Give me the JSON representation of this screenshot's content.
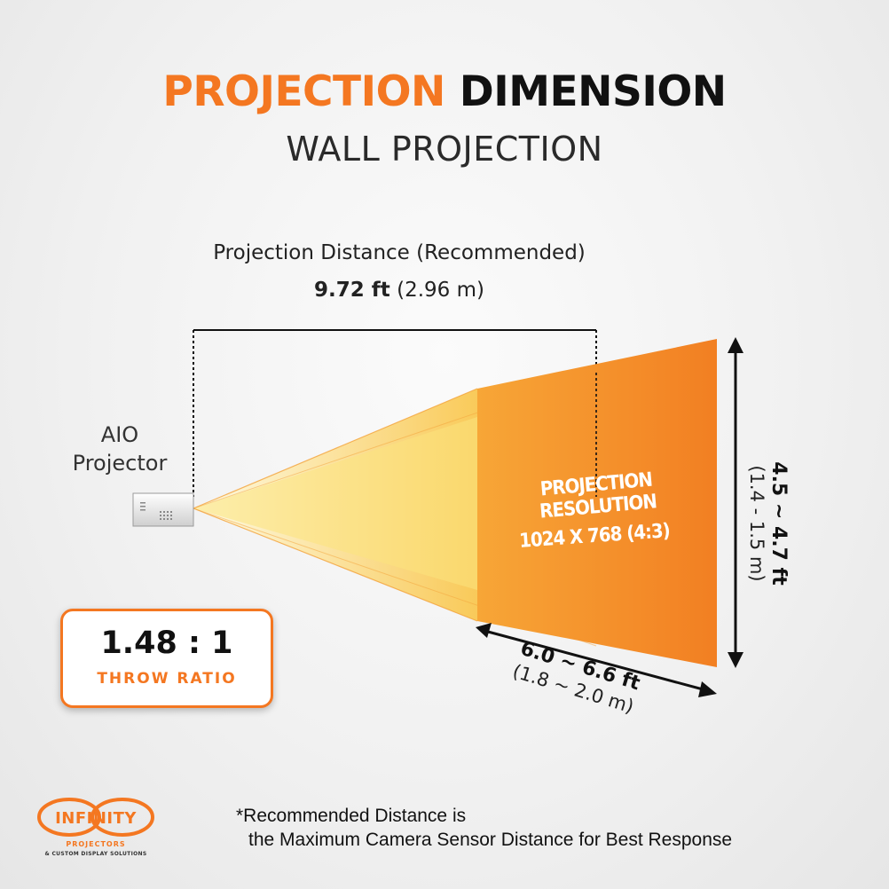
{
  "header": {
    "title_accent": "PROJECTION",
    "title_dark": "DIMENSION",
    "subtitle": "WALL PROJECTION"
  },
  "distance": {
    "label": "Projection Distance (Recommended)",
    "value_ft": "9.72 ft",
    "value_m": "(2.96 m)"
  },
  "projector": {
    "label_line1": "AIO",
    "label_line2": "Projector"
  },
  "screen": {
    "title": "PROJECTION RESOLUTION",
    "resolution": "1024 X 768 (4:3)"
  },
  "height": {
    "ft": "4.5 ~ 4.7 ft",
    "m": "(1.4 - 1.5 m)"
  },
  "width": {
    "ft": "6.0 ~ 6.6 ft",
    "m": "(1.8 ~ 2.0 m)"
  },
  "throw": {
    "value": "1.48 : 1",
    "label": "THROW RATIO"
  },
  "footnote": {
    "line1": "*Recommended Distance is",
    "line2": "the Maximum Camera Sensor Distance for Best Response"
  },
  "logo": {
    "name": "INFINITY",
    "sub1": "PROJECTORS",
    "sub2": "& CUSTOM DISPLAY SOLUTIONS"
  },
  "colors": {
    "accent": "#f47721",
    "beam": "#fbe36a",
    "screen": "#f58b26"
  },
  "icons": [
    "projector-icon",
    "infinity-logo",
    "double-arrow-icon"
  ]
}
